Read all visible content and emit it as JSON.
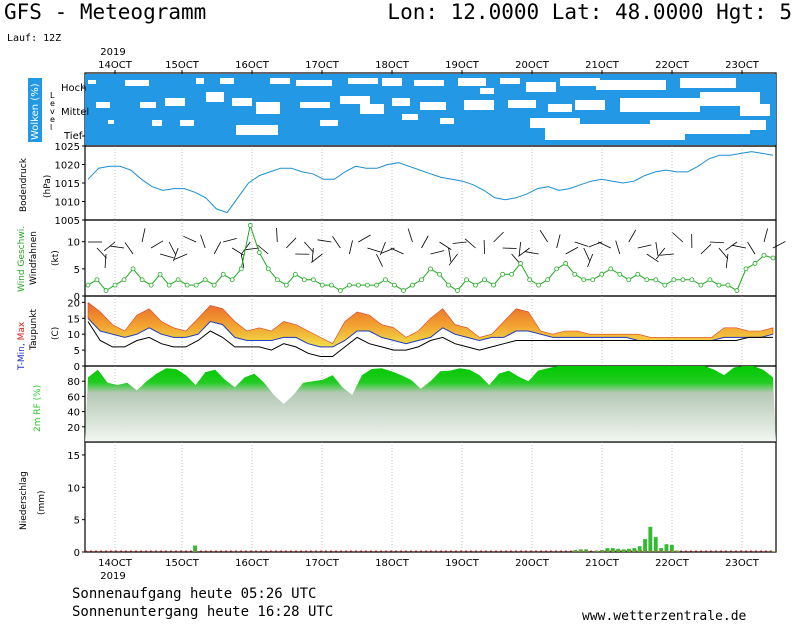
{
  "header": {
    "title": "GFS - Meteogramm",
    "coords": "Lon: 12.0000 Lat: 48.0000 Hgt: 5",
    "run": "Lauf: 12Z"
  },
  "footer": {
    "sunrise": "Sonnenaufgang heute 05:26 UTC",
    "sunset": "Sonnenuntergang heute 16:28 UTC",
    "credit": "www.wetterzentrale.de"
  },
  "colors": {
    "cloud": "#2399e6",
    "pressure": "#1a8fd0",
    "wind": "#22aa22",
    "rh": "#22cc22",
    "precip": "#33bb33"
  },
  "chart_data": [
    {
      "type": "heatmap",
      "title": "Wolken (%)",
      "ylabel": "Level",
      "levels": [
        "Tief",
        "Mittel",
        "Hoch"
      ],
      "x_ticks": [
        "14OCT",
        "15OCT",
        "16OCT",
        "17OCT",
        "18OCT",
        "19OCT",
        "20OCT",
        "21OCT",
        "22OCT",
        "23OCT"
      ],
      "year": "2019"
    },
    {
      "type": "line",
      "ylabel": "Bodendruck (hPa)",
      "ylim": [
        1005,
        1025
      ],
      "yticks": [
        1005,
        1010,
        1015,
        1020,
        1025
      ],
      "series": [
        {
          "values": [
            1016,
            1019,
            1019.5,
            1019.5,
            1018.5,
            1016,
            1014,
            1013,
            1013.5,
            1013.5,
            1012.5,
            1011,
            1008,
            1007,
            1011,
            1015,
            1017,
            1018,
            1019,
            1019,
            1018,
            1017.5,
            1016,
            1016,
            1018,
            1019.5,
            1019,
            1019,
            1020,
            1020.5,
            1019.5,
            1018.5,
            1017.5,
            1016.5,
            1016,
            1015.5,
            1014.5,
            1013,
            1011,
            1010.5,
            1011,
            1012,
            1013.5,
            1014,
            1013,
            1013.5,
            1014.5,
            1015.5,
            1016,
            1015.5,
            1015,
            1015.5,
            1017,
            1018,
            1018.5,
            1018,
            1018,
            1019.5,
            1021.5,
            1022.5,
            1022.5,
            1023,
            1023.5,
            1023,
            1022.5
          ]
        }
      ]
    },
    {
      "type": "line",
      "ylabel": "Wind Geschwi. Windfahnen (kt)",
      "ylim": [
        0,
        14
      ],
      "yticks": [
        0,
        5,
        10
      ],
      "series": [
        {
          "values": [
            2,
            3,
            1,
            2,
            3,
            5,
            3,
            2,
            4,
            2,
            3,
            2,
            2,
            3,
            2,
            4,
            3,
            5,
            13,
            8,
            5,
            3,
            2,
            4,
            3,
            3,
            2,
            2,
            1,
            2,
            2,
            2,
            2,
            3,
            2,
            1,
            2,
            3,
            5,
            4,
            2,
            1,
            3,
            2,
            3,
            2,
            4,
            4,
            6,
            3,
            2,
            3,
            5,
            6,
            4,
            3,
            3,
            4,
            5,
            4,
            3,
            4,
            3,
            3,
            2,
            3,
            3,
            3,
            2,
            3,
            2,
            2,
            1,
            5,
            6,
            7.5,
            7
          ]
        }
      ]
    },
    {
      "type": "line",
      "ylabel": "T-Min, Max Taupunkt (C)",
      "ylim": [
        0,
        22
      ],
      "yticks": [
        0,
        5,
        10,
        15,
        20
      ],
      "series": [
        {
          "name": "T-Max",
          "values": [
            20,
            17,
            13,
            11,
            16,
            18,
            14,
            12,
            11,
            15,
            19,
            18,
            14,
            11,
            12,
            11,
            14,
            13,
            11,
            9,
            7,
            14,
            17,
            16,
            13,
            12,
            9,
            11,
            15,
            18,
            13,
            12,
            9,
            10,
            14,
            18,
            17,
            11,
            10,
            11,
            11,
            10,
            10,
            10,
            10,
            10,
            9,
            9,
            9,
            9,
            9,
            9,
            12,
            12,
            11,
            11,
            12
          ]
        },
        {
          "name": "T-Min",
          "values": [
            15,
            11,
            10,
            9,
            10,
            12,
            10,
            9,
            9,
            10,
            14,
            13,
            9,
            8,
            8,
            8,
            9,
            9,
            7,
            6,
            6,
            8,
            11,
            11,
            9,
            8,
            7,
            8,
            9,
            12,
            10,
            9,
            8,
            9,
            9,
            11,
            11,
            10,
            9,
            9,
            9,
            9,
            9,
            9,
            9,
            8,
            8,
            8,
            8,
            8,
            8,
            8,
            9,
            9,
            9,
            9,
            10
          ]
        },
        {
          "name": "Taupunkt",
          "values": [
            14,
            8,
            6,
            6,
            8,
            9,
            7,
            6,
            6,
            8,
            11,
            9,
            6,
            6,
            6,
            5,
            7,
            6,
            4,
            3,
            3,
            6,
            9,
            7,
            6,
            5,
            5,
            6,
            8,
            9,
            7,
            6,
            5,
            6,
            7,
            8,
            8,
            8,
            8,
            8,
            8,
            8,
            8,
            8,
            8,
            8,
            8,
            8,
            8,
            8,
            8,
            8,
            8,
            8,
            9,
            9,
            9
          ]
        }
      ]
    },
    {
      "type": "area",
      "ylabel": "2m RF (%)",
      "ylim": [
        0,
        100
      ],
      "yticks": [
        20,
        40,
        60,
        80
      ],
      "series": [
        {
          "values": [
            85,
            95,
            78,
            75,
            78,
            68,
            80,
            90,
            97,
            96,
            88,
            75,
            92,
            95,
            82,
            72,
            85,
            90,
            78,
            62,
            50,
            62,
            78,
            80,
            82,
            88,
            72,
            62,
            88,
            96,
            97,
            93,
            88,
            82,
            70,
            80,
            93,
            94,
            97,
            95,
            88,
            75,
            90,
            94,
            86,
            80,
            94,
            97,
            100,
            100,
            100,
            100,
            100,
            100,
            100,
            100,
            100,
            100,
            100,
            100,
            100,
            100,
            100,
            100,
            95,
            88,
            98,
            100,
            100,
            95,
            85
          ]
        }
      ]
    },
    {
      "type": "bar",
      "ylabel": "Niederschlag (mm)",
      "ylim": [
        0,
        17
      ],
      "yticks": [
        0,
        5,
        10,
        15
      ],
      "x_ticks": [
        "14OCT",
        "15OCT",
        "16OCT",
        "17OCT",
        "18OCT",
        "19OCT",
        "20OCT",
        "21OCT",
        "22OCT",
        "23OCT"
      ],
      "year": "2019",
      "values": [
        0,
        0,
        0,
        0,
        0,
        0,
        0,
        0,
        0,
        0,
        0,
        0,
        0,
        0,
        0,
        0,
        0,
        0,
        0,
        0,
        1,
        0,
        0,
        0,
        0,
        0,
        0,
        0,
        0,
        0,
        0,
        0,
        0,
        0,
        0,
        0,
        0,
        0,
        0,
        0,
        0,
        0,
        0,
        0,
        0,
        0,
        0,
        0,
        0,
        0,
        0,
        0,
        0,
        0,
        0,
        0,
        0,
        0,
        0,
        0,
        0,
        0,
        0,
        0,
        0,
        0,
        0,
        0,
        0,
        0,
        0,
        0,
        0,
        0,
        0,
        0,
        0,
        0,
        0,
        0,
        0,
        0,
        0,
        0,
        0,
        0,
        0,
        0,
        0,
        0,
        0,
        0.3,
        0.4,
        0.4,
        0,
        0.2,
        0.3,
        0.6,
        0.6,
        0.5,
        0.4,
        0.5,
        0.6,
        0.9,
        2,
        3.9,
        2.3,
        0.6,
        1.2,
        1.1,
        0.2,
        0,
        0,
        0,
        0,
        0,
        0,
        0,
        0,
        0,
        0,
        0,
        0,
        0,
        0,
        0,
        0,
        0,
        0.1
      ]
    }
  ]
}
